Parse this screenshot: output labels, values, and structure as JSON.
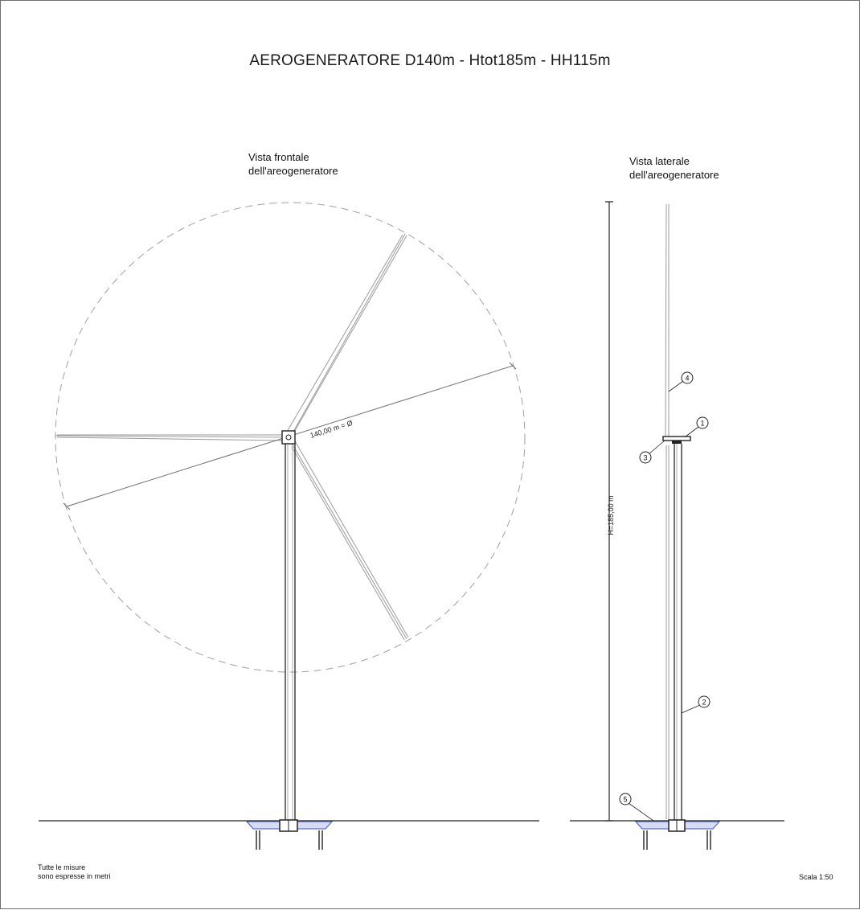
{
  "title": "AEROGENERATORE D140m - Htot185m - HH115m",
  "front_view": {
    "caption_line1": "Vista frontale",
    "caption_line2": "dell'areogeneratore",
    "rotor_dimension_label": "140,00 m = Ø"
  },
  "side_view": {
    "caption_line1": "Vista laterale",
    "caption_line2": "dell'areogeneratore",
    "height_dimension_label": "H=185,00 m",
    "callouts": [
      "1",
      "2",
      "3",
      "4",
      "5"
    ]
  },
  "footer": {
    "note_line1": "Tutte le misure",
    "note_line2": "sono espresse in metri",
    "scale": "Scala 1:50"
  },
  "colors": {
    "line": "#222222",
    "blade": "#9a9a9a",
    "dashed_circle": "#a0a0a0",
    "foundation": "#3a55c8"
  }
}
